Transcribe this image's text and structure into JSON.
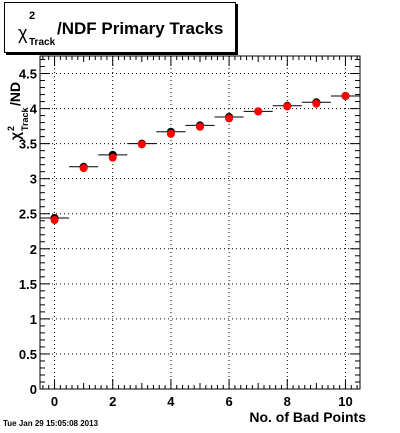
{
  "title": {
    "symbol": "χ",
    "superscript": "2",
    "subscript": "Track",
    "text": "/NDF Primary Tracks"
  },
  "timestamp": "Tue Jan 29 15:05:08 2013",
  "chart_data": {
    "type": "scatter",
    "title": "χ²_Track/NDF Primary Tracks",
    "xlabel": "No. of Bad Points",
    "ylabel": "χ²_Track/NDF",
    "xlim": [
      -0.5,
      10.5
    ],
    "ylim": [
      0,
      4.75
    ],
    "xticks": [
      0,
      2,
      4,
      6,
      8,
      10
    ],
    "yticks": [
      0,
      0.5,
      1,
      1.5,
      2,
      2.5,
      3,
      3.5,
      4,
      4.5
    ],
    "ytick_labels": [
      "0",
      "0.5",
      "1",
      "1.5",
      "2",
      "2.5",
      "3",
      "3.5",
      "4",
      "4.5"
    ],
    "grid": true,
    "series": [
      {
        "marker_color": "#ff0000",
        "black_markers": {
          "x": [
            0,
            1,
            2,
            3,
            4,
            5,
            6,
            7,
            8,
            9,
            10
          ],
          "y": [
            2.44,
            3.17,
            3.34,
            3.5,
            3.67,
            3.76,
            3.88,
            3.96,
            4.04,
            4.09,
            4.18
          ]
        },
        "red_markers": {
          "x": [
            0,
            1,
            2,
            3,
            4,
            5,
            6,
            7,
            8,
            9,
            10
          ],
          "y": [
            2.41,
            3.15,
            3.3,
            3.49,
            3.64,
            3.74,
            3.86,
            3.96,
            4.03,
            4.07,
            4.18
          ]
        },
        "x_half_width": 0.5
      }
    ]
  }
}
